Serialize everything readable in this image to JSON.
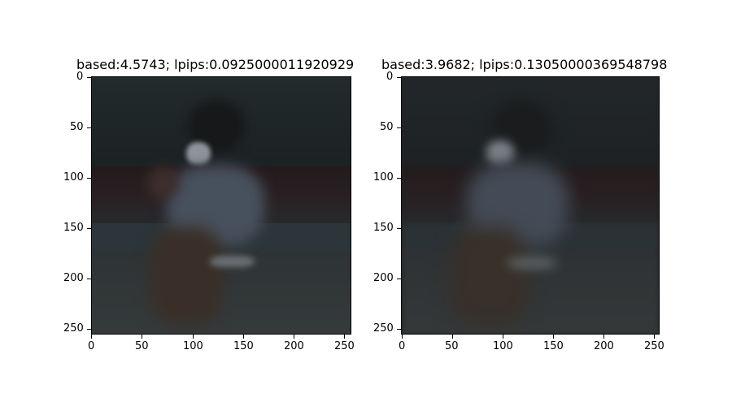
{
  "panels": [
    {
      "title": "based:4.5743; lpips:0.0925000011920929",
      "x_ticks": [
        "0",
        "50",
        "100",
        "150",
        "200",
        "250"
      ],
      "y_ticks": [
        "0",
        "50",
        "100",
        "150",
        "200",
        "250"
      ]
    },
    {
      "title": "based:3.9682; lpips:0.13050000369548798",
      "x_ticks": [
        "0",
        "50",
        "100",
        "150",
        "200",
        "250"
      ],
      "y_ticks": [
        "0",
        "50",
        "100",
        "150",
        "200",
        "250"
      ]
    }
  ],
  "scene_colors": {
    "wall": "#1e2426",
    "wall_band": "#231a1c",
    "floor": "#2f3436",
    "floor_edge": "#3a4145",
    "shirt": "#4a5362",
    "legs": "#3a2f2a",
    "mask": "#9aa0a6",
    "hair": "#151718"
  }
}
